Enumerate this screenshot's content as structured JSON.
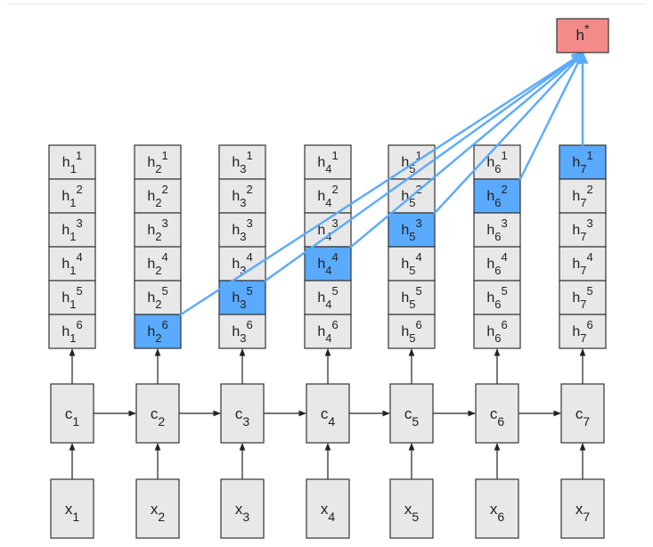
{
  "colors": {
    "cell": "#e8e8e8",
    "cell_border": "#333333",
    "highlight": "#5aaaff",
    "connector": "#5aaaff",
    "output": "#f38b8b",
    "arrow": "#222222"
  },
  "output_node": {
    "base": "h",
    "sup": "*"
  },
  "columns": [
    {
      "x_label": {
        "base": "x",
        "sub": "1"
      },
      "c_label": {
        "base": "c",
        "sub": "1"
      },
      "highlight_level": null,
      "cells": [
        {
          "base": "h",
          "sub": "1",
          "sup": "1"
        },
        {
          "base": "h",
          "sub": "1",
          "sup": "2"
        },
        {
          "base": "h",
          "sub": "1",
          "sup": "3"
        },
        {
          "base": "h",
          "sub": "1",
          "sup": "4"
        },
        {
          "base": "h",
          "sub": "1",
          "sup": "5"
        },
        {
          "base": "h",
          "sub": "1",
          "sup": "6"
        }
      ]
    },
    {
      "x_label": {
        "base": "x",
        "sub": "2"
      },
      "c_label": {
        "base": "c",
        "sub": "2"
      },
      "highlight_level": 6,
      "cells": [
        {
          "base": "h",
          "sub": "2",
          "sup": "1"
        },
        {
          "base": "h",
          "sub": "2",
          "sup": "2"
        },
        {
          "base": "h",
          "sub": "2",
          "sup": "3"
        },
        {
          "base": "h",
          "sub": "2",
          "sup": "4"
        },
        {
          "base": "h",
          "sub": "2",
          "sup": "5"
        },
        {
          "base": "h",
          "sub": "2",
          "sup": "6"
        }
      ]
    },
    {
      "x_label": {
        "base": "x",
        "sub": "3"
      },
      "c_label": {
        "base": "c",
        "sub": "3"
      },
      "highlight_level": 5,
      "cells": [
        {
          "base": "h",
          "sub": "3",
          "sup": "1"
        },
        {
          "base": "h",
          "sub": "3",
          "sup": "2"
        },
        {
          "base": "h",
          "sub": "3",
          "sup": "3"
        },
        {
          "base": "h",
          "sub": "3",
          "sup": "4"
        },
        {
          "base": "h",
          "sub": "3",
          "sup": "5"
        },
        {
          "base": "h",
          "sub": "3",
          "sup": "6"
        }
      ]
    },
    {
      "x_label": {
        "base": "x",
        "sub": "4"
      },
      "c_label": {
        "base": "c",
        "sub": "4"
      },
      "highlight_level": 4,
      "cells": [
        {
          "base": "h",
          "sub": "4",
          "sup": "1"
        },
        {
          "base": "h",
          "sub": "4",
          "sup": "2"
        },
        {
          "base": "h",
          "sub": "4",
          "sup": "3"
        },
        {
          "base": "h",
          "sub": "4",
          "sup": "4"
        },
        {
          "base": "h",
          "sub": "4",
          "sup": "5"
        },
        {
          "base": "h",
          "sub": "4",
          "sup": "6"
        }
      ]
    },
    {
      "x_label": {
        "base": "x",
        "sub": "5"
      },
      "c_label": {
        "base": "c",
        "sub": "5"
      },
      "highlight_level": 3,
      "cells": [
        {
          "base": "h",
          "sub": "5",
          "sup": "1"
        },
        {
          "base": "h",
          "sub": "5",
          "sup": "2"
        },
        {
          "base": "h",
          "sub": "5",
          "sup": "3"
        },
        {
          "base": "h",
          "sub": "5",
          "sup": "4"
        },
        {
          "base": "h",
          "sub": "5",
          "sup": "5"
        },
        {
          "base": "h",
          "sub": "5",
          "sup": "6"
        }
      ]
    },
    {
      "x_label": {
        "base": "x",
        "sub": "6"
      },
      "c_label": {
        "base": "c",
        "sub": "6"
      },
      "highlight_level": 2,
      "cells": [
        {
          "base": "h",
          "sub": "6",
          "sup": "1"
        },
        {
          "base": "h",
          "sub": "6",
          "sup": "2"
        },
        {
          "base": "h",
          "sub": "6",
          "sup": "3"
        },
        {
          "base": "h",
          "sub": "6",
          "sup": "4"
        },
        {
          "base": "h",
          "sub": "6",
          "sup": "5"
        },
        {
          "base": "h",
          "sub": "6",
          "sup": "6"
        }
      ]
    },
    {
      "x_label": {
        "base": "x",
        "sub": "7"
      },
      "c_label": {
        "base": "c",
        "sub": "7"
      },
      "highlight_level": 1,
      "cells": [
        {
          "base": "h",
          "sub": "7",
          "sup": "1"
        },
        {
          "base": "h",
          "sub": "7",
          "sup": "2"
        },
        {
          "base": "h",
          "sub": "7",
          "sup": "3"
        },
        {
          "base": "h",
          "sub": "7",
          "sup": "4"
        },
        {
          "base": "h",
          "sub": "7",
          "sup": "5"
        },
        {
          "base": "h",
          "sub": "7",
          "sup": "6"
        }
      ]
    }
  ]
}
